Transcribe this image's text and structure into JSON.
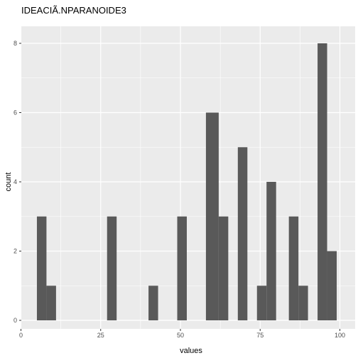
{
  "chart_data": {
    "type": "bar",
    "title": "IDEACIÃ.NPARANOIDE3",
    "xlabel": "values",
    "ylabel": "count",
    "xlim": [
      0,
      100
    ],
    "ylim": [
      0,
      8
    ],
    "x_ticks": [
      "0",
      "25",
      "50",
      "75",
      "100"
    ],
    "y_ticks": [
      "0",
      "2",
      "4",
      "6",
      "8"
    ],
    "bins": [
      {
        "from": 5,
        "to": 8,
        "count": 3
      },
      {
        "from": 8,
        "to": 11,
        "count": 1
      },
      {
        "from": 27,
        "to": 30,
        "count": 3
      },
      {
        "from": 40,
        "to": 43,
        "count": 1
      },
      {
        "from": 49,
        "to": 52,
        "count": 3
      },
      {
        "from": 58,
        "to": 62,
        "count": 6
      },
      {
        "from": 62,
        "to": 65,
        "count": 3
      },
      {
        "from": 68,
        "to": 71,
        "count": 5
      },
      {
        "from": 74,
        "to": 77,
        "count": 1
      },
      {
        "from": 77,
        "to": 80,
        "count": 4
      },
      {
        "from": 84,
        "to": 87,
        "count": 3
      },
      {
        "from": 87,
        "to": 90,
        "count": 1
      },
      {
        "from": 93,
        "to": 96,
        "count": 8
      },
      {
        "from": 96,
        "to": 99,
        "count": 2
      }
    ],
    "grid": true,
    "colors": {
      "panel_background": "#ebebeb",
      "grid_line": "#ffffff",
      "bar_fill": "#595959",
      "tick_text": "#4d4d4d",
      "tick_mark": "#333333"
    }
  }
}
